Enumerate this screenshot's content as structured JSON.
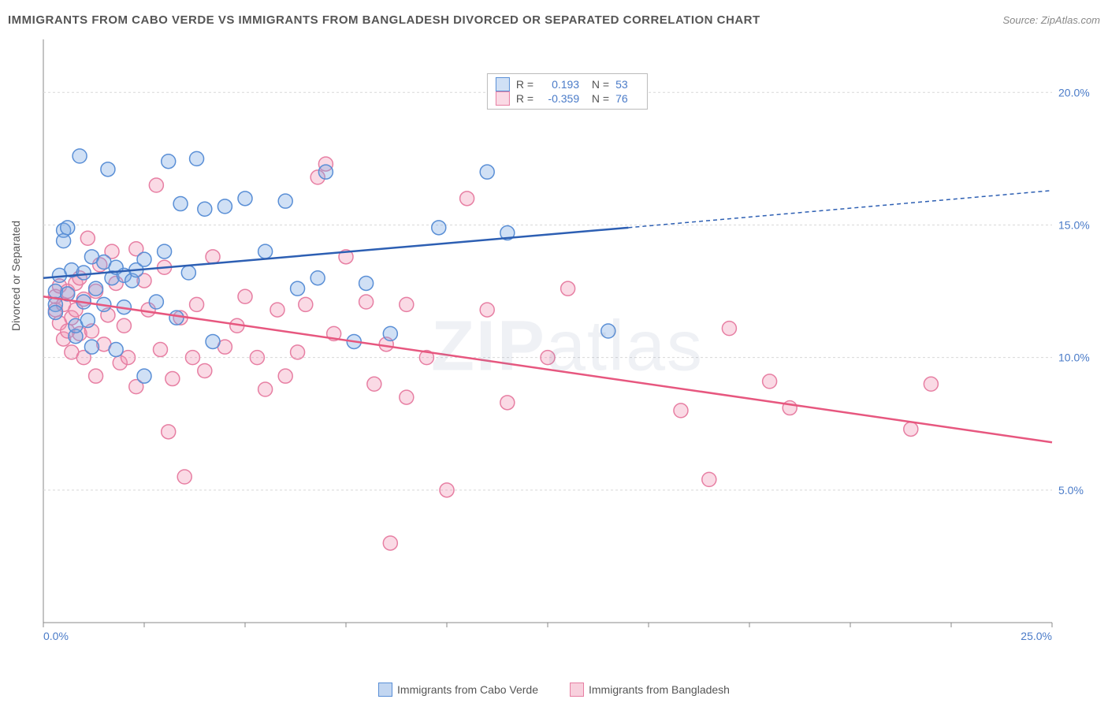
{
  "title": "IMMIGRANTS FROM CABO VERDE VS IMMIGRANTS FROM BANGLADESH DIVORCED OR SEPARATED CORRELATION CHART",
  "source": "Source: ZipAtlas.com",
  "y_axis_label": "Divorced or Separated",
  "watermark_bold": "ZIP",
  "watermark_light": "atlas",
  "chart": {
    "type": "scatter",
    "background_color": "#ffffff",
    "grid_color": "#d8d8d8",
    "axis_color": "#888888",
    "xlim": [
      0,
      25
    ],
    "ylim": [
      0,
      22
    ],
    "x_ticks": [
      0,
      2.5,
      5,
      7.5,
      10,
      12.5,
      15,
      17.5,
      20,
      22.5,
      25
    ],
    "x_tick_labels": {
      "0": "0.0%",
      "25": "25.0%"
    },
    "y_ticks": [
      5,
      10,
      15,
      20
    ],
    "y_tick_labels": {
      "5": "5.0%",
      "10": "10.0%",
      "15": "15.0%",
      "20": "20.0%"
    },
    "marker_radius": 9,
    "marker_stroke_width": 1.5,
    "line_width": 2.5,
    "series": [
      {
        "name": "Immigrants from Cabo Verde",
        "fill": "rgba(120,165,225,0.35)",
        "stroke": "#5a8fd6",
        "line_color": "#2d5fb3",
        "R": "0.193",
        "N": "53",
        "trend": {
          "x1": 0,
          "y1": 13.0,
          "x2": 14.5,
          "y2": 14.9,
          "dash_x2": 25,
          "dash_y2": 16.3
        },
        "points": [
          [
            0.3,
            12.5
          ],
          [
            0.3,
            12.0
          ],
          [
            0.3,
            11.7
          ],
          [
            0.4,
            13.1
          ],
          [
            0.5,
            14.8
          ],
          [
            0.5,
            14.4
          ],
          [
            0.6,
            14.9
          ],
          [
            0.6,
            12.4
          ],
          [
            0.7,
            13.3
          ],
          [
            0.8,
            10.8
          ],
          [
            0.8,
            11.2
          ],
          [
            0.9,
            17.6
          ],
          [
            1.0,
            13.2
          ],
          [
            1.0,
            12.1
          ],
          [
            1.1,
            11.4
          ],
          [
            1.2,
            10.4
          ],
          [
            1.2,
            13.8
          ],
          [
            1.3,
            12.6
          ],
          [
            1.5,
            13.6
          ],
          [
            1.5,
            12.0
          ],
          [
            1.6,
            17.1
          ],
          [
            1.7,
            13.0
          ],
          [
            1.8,
            10.3
          ],
          [
            1.8,
            13.4
          ],
          [
            2.0,
            13.1
          ],
          [
            2.0,
            11.9
          ],
          [
            2.2,
            12.9
          ],
          [
            2.3,
            13.3
          ],
          [
            2.5,
            9.3
          ],
          [
            2.5,
            13.7
          ],
          [
            2.8,
            12.1
          ],
          [
            3.0,
            14.0
          ],
          [
            3.1,
            17.4
          ],
          [
            3.3,
            11.5
          ],
          [
            3.4,
            15.8
          ],
          [
            3.6,
            13.2
          ],
          [
            3.8,
            17.5
          ],
          [
            4.0,
            15.6
          ],
          [
            4.2,
            10.6
          ],
          [
            4.5,
            15.7
          ],
          [
            5.0,
            16.0
          ],
          [
            5.5,
            14.0
          ],
          [
            6.0,
            15.9
          ],
          [
            6.3,
            12.6
          ],
          [
            6.8,
            13.0
          ],
          [
            7.0,
            17.0
          ],
          [
            7.7,
            10.6
          ],
          [
            8.0,
            12.8
          ],
          [
            8.6,
            10.9
          ],
          [
            9.8,
            14.9
          ],
          [
            11.0,
            17.0
          ],
          [
            11.5,
            14.7
          ],
          [
            14.0,
            11.0
          ]
        ]
      },
      {
        "name": "Immigrants from Bangladesh",
        "fill": "rgba(240,150,180,0.35)",
        "stroke": "#e77fa3",
        "line_color": "#e7577f",
        "R": "-0.359",
        "N": "76",
        "trend": {
          "x1": 0,
          "y1": 12.3,
          "x2": 25,
          "y2": 6.8
        },
        "points": [
          [
            0.3,
            12.3
          ],
          [
            0.3,
            11.8
          ],
          [
            0.4,
            12.7
          ],
          [
            0.4,
            11.3
          ],
          [
            0.5,
            12.0
          ],
          [
            0.5,
            10.7
          ],
          [
            0.6,
            11.0
          ],
          [
            0.6,
            12.5
          ],
          [
            0.7,
            11.5
          ],
          [
            0.7,
            10.2
          ],
          [
            0.8,
            12.8
          ],
          [
            0.8,
            11.8
          ],
          [
            0.9,
            13.0
          ],
          [
            0.9,
            10.9
          ],
          [
            1.0,
            12.2
          ],
          [
            1.0,
            10.0
          ],
          [
            1.1,
            14.5
          ],
          [
            1.2,
            11.0
          ],
          [
            1.3,
            9.3
          ],
          [
            1.3,
            12.5
          ],
          [
            1.4,
            13.5
          ],
          [
            1.5,
            10.5
          ],
          [
            1.6,
            11.6
          ],
          [
            1.7,
            14.0
          ],
          [
            1.8,
            12.8
          ],
          [
            1.9,
            9.8
          ],
          [
            2.0,
            11.2
          ],
          [
            2.1,
            10.0
          ],
          [
            2.3,
            14.1
          ],
          [
            2.3,
            8.9
          ],
          [
            2.5,
            12.9
          ],
          [
            2.6,
            11.8
          ],
          [
            2.8,
            16.5
          ],
          [
            2.9,
            10.3
          ],
          [
            3.0,
            13.4
          ],
          [
            3.1,
            7.2
          ],
          [
            3.2,
            9.2
          ],
          [
            3.4,
            11.5
          ],
          [
            3.5,
            5.5
          ],
          [
            3.7,
            10.0
          ],
          [
            3.8,
            12.0
          ],
          [
            4.0,
            9.5
          ],
          [
            4.2,
            13.8
          ],
          [
            4.5,
            10.4
          ],
          [
            4.8,
            11.2
          ],
          [
            5.0,
            12.3
          ],
          [
            5.3,
            10.0
          ],
          [
            5.5,
            8.8
          ],
          [
            5.8,
            11.8
          ],
          [
            6.0,
            9.3
          ],
          [
            6.3,
            10.2
          ],
          [
            6.5,
            12.0
          ],
          [
            6.8,
            16.8
          ],
          [
            7.0,
            17.3
          ],
          [
            7.2,
            10.9
          ],
          [
            7.5,
            13.8
          ],
          [
            8.0,
            12.1
          ],
          [
            8.2,
            9.0
          ],
          [
            8.5,
            10.5
          ],
          [
            8.6,
            3.0
          ],
          [
            9.0,
            12.0
          ],
          [
            9.0,
            8.5
          ],
          [
            9.5,
            10.0
          ],
          [
            10.0,
            5.0
          ],
          [
            10.5,
            16.0
          ],
          [
            11.0,
            11.8
          ],
          [
            11.5,
            8.3
          ],
          [
            12.5,
            10.0
          ],
          [
            13.0,
            12.6
          ],
          [
            15.8,
            8.0
          ],
          [
            16.5,
            5.4
          ],
          [
            17.0,
            11.1
          ],
          [
            18.0,
            9.1
          ],
          [
            18.5,
            8.1
          ],
          [
            21.5,
            7.3
          ],
          [
            22.0,
            9.0
          ]
        ]
      }
    ]
  },
  "bottom_legend": [
    {
      "label": "Immigrants from Cabo Verde",
      "fill": "rgba(120,165,225,0.45)",
      "stroke": "#5a8fd6"
    },
    {
      "label": "Immigrants from Bangladesh",
      "fill": "rgba(240,150,180,0.45)",
      "stroke": "#e77fa3"
    }
  ]
}
